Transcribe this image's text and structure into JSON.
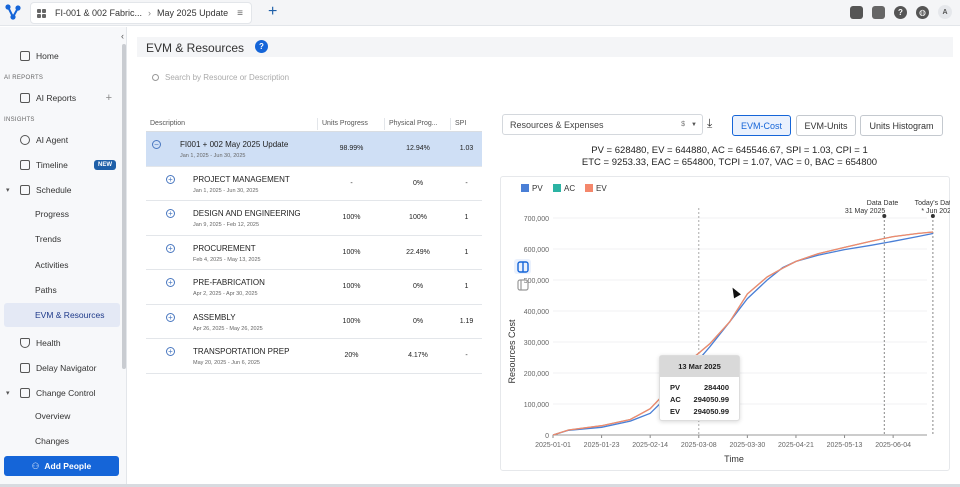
{
  "topbar": {
    "project": "FI-001 & 002 Fabric...",
    "version": "May 2025 Update",
    "icons": [
      "briefcase-icon",
      "people-gear-icon",
      "help-circle-icon",
      "globe-icon"
    ],
    "avatar_initial": "A"
  },
  "sidebar": {
    "home": "Home",
    "section_ai": "AI REPORTS",
    "ai_reports": "AI Reports",
    "section_insights": "INSIGHTS",
    "ai_agent": "AI Agent",
    "timeline": "Timeline",
    "timeline_badge": "NEW",
    "schedule": "Schedule",
    "schedule_items": [
      "Progress",
      "Trends",
      "Activities",
      "Paths",
      "EVM & Resources"
    ],
    "health": "Health",
    "delay_navigator": "Delay Navigator",
    "change_control": "Change Control",
    "change_items": [
      "Overview",
      "Changes"
    ],
    "add_people": "Add People"
  },
  "page": {
    "title": "EVM & Resources",
    "search_placeholder": "Search by Resource or Description"
  },
  "table": {
    "headers": [
      "Description",
      "Units Progress",
      "Physical Prog...",
      "SPI"
    ],
    "rows": [
      {
        "name": "FI001 + 002 May 2025 Update",
        "dates": "Jan 1, 2025 - Jun 30, 2025",
        "units": "98.99%",
        "physical": "12.94%",
        "spi": "1.03",
        "toggle": "−"
      },
      {
        "name": "PROJECT MANAGEMENT",
        "dates": "Jan 1, 2025 - Jun 30, 2025",
        "units": "-",
        "physical": "0%",
        "spi": "-",
        "toggle": "+"
      },
      {
        "name": "DESIGN AND ENGINEERING",
        "dates": "Jan 9, 2025 - Feb 12, 2025",
        "units": "100%",
        "physical": "100%",
        "spi": "1",
        "toggle": "+"
      },
      {
        "name": "PROCUREMENT",
        "dates": "Feb 4, 2025 - May 13, 2025",
        "units": "100%",
        "physical": "22.49%",
        "spi": "1",
        "toggle": "+"
      },
      {
        "name": "PRE-FABRICATION",
        "dates": "Apr 2, 2025 - Apr 30, 2025",
        "units": "100%",
        "physical": "0%",
        "spi": "1",
        "toggle": "+"
      },
      {
        "name": "ASSEMBLY",
        "dates": "Apr 26, 2025 - May 26, 2025",
        "units": "100%",
        "physical": "0%",
        "spi": "1.19",
        "toggle": "+"
      },
      {
        "name": "TRANSPORTATION PREP",
        "dates": "May 20, 2025 - Jun 6, 2025",
        "units": "20%",
        "physical": "4.17%",
        "spi": "-",
        "toggle": "+"
      }
    ]
  },
  "controls": {
    "resource_select": "Resources & Expenses",
    "currency": "$",
    "tabs": [
      "EVM-Cost",
      "EVM-Units",
      "Units Histogram"
    ],
    "active_tab": "EVM-Cost"
  },
  "metrics": {
    "line1": "PV = 628480,  EV = 644880,  AC = 645546.67,  SPI = 1.03,  CPI = 1",
    "line2": "ETC = 9253.33,  EAC = 654800,  TCPI = 1.07,  VAC = 0,  BAC = 654800"
  },
  "tooltip": {
    "date": "13 Mar 2025",
    "rows": [
      {
        "label": "PV",
        "value": "284400"
      },
      {
        "label": "AC",
        "value": "294050.99"
      },
      {
        "label": "EV",
        "value": "294050.99"
      }
    ]
  },
  "chart_data": {
    "type": "line",
    "xlabel": "Time",
    "ylabel": "Resources Cost",
    "ylim": [
      0,
      700000
    ],
    "yticks": [
      "0",
      "100,000",
      "200,000",
      "300,000",
      "400,000",
      "500,000",
      "600,000",
      "700,000"
    ],
    "xticks": [
      "2025-01-01",
      "2025-01-23",
      "2025-02-14",
      "2025-03-08",
      "2025-03-30",
      "2025-04-21",
      "2025-05-13",
      "2025-06-04"
    ],
    "legend_position": "top-left",
    "series": [
      {
        "name": "PV",
        "color": "#4a7fd6",
        "points": [
          [
            "2025-01-01",
            0
          ],
          [
            "2025-01-08",
            15000
          ],
          [
            "2025-01-23",
            25000
          ],
          [
            "2025-02-05",
            45000
          ],
          [
            "2025-02-14",
            70000
          ],
          [
            "2025-02-24",
            140000
          ],
          [
            "2025-03-04",
            210000
          ],
          [
            "2025-03-13",
            284400
          ],
          [
            "2025-03-22",
            365000
          ],
          [
            "2025-03-30",
            440000
          ],
          [
            "2025-04-08",
            500000
          ],
          [
            "2025-04-15",
            540000
          ],
          [
            "2025-04-21",
            560000
          ],
          [
            "2025-05-01",
            580000
          ],
          [
            "2025-05-13",
            598000
          ],
          [
            "2025-05-25",
            612000
          ],
          [
            "2025-06-04",
            625000
          ],
          [
            "2025-06-15",
            640000
          ],
          [
            "2025-06-22",
            650000
          ]
        ]
      },
      {
        "name": "AC",
        "color": "#2bb3a3",
        "points": [
          [
            "2025-01-01",
            0
          ],
          [
            "2025-01-08",
            16000
          ],
          [
            "2025-01-23",
            30000
          ],
          [
            "2025-02-05",
            50000
          ],
          [
            "2025-02-14",
            85000
          ],
          [
            "2025-02-24",
            160000
          ],
          [
            "2025-03-04",
            240000
          ],
          [
            "2025-03-13",
            294050.99
          ],
          [
            "2025-03-22",
            365000
          ],
          [
            "2025-03-30",
            455000
          ],
          [
            "2025-04-08",
            510000
          ],
          [
            "2025-04-15",
            538000
          ],
          [
            "2025-04-21",
            560000
          ],
          [
            "2025-05-01",
            585000
          ],
          [
            "2025-05-13",
            605000
          ],
          [
            "2025-05-25",
            625000
          ],
          [
            "2025-06-04",
            640000
          ],
          [
            "2025-06-15",
            650000
          ],
          [
            "2025-06-22",
            654800
          ]
        ]
      },
      {
        "name": "EV",
        "color": "#f4876b",
        "points": [
          [
            "2025-01-01",
            0
          ],
          [
            "2025-01-08",
            16000
          ],
          [
            "2025-01-23",
            30000
          ],
          [
            "2025-02-05",
            50000
          ],
          [
            "2025-02-14",
            85000
          ],
          [
            "2025-02-24",
            160000
          ],
          [
            "2025-03-04",
            240000
          ],
          [
            "2025-03-13",
            294050.99
          ],
          [
            "2025-03-22",
            365000
          ],
          [
            "2025-03-30",
            455000
          ],
          [
            "2025-04-08",
            510000
          ],
          [
            "2025-04-15",
            538000
          ],
          [
            "2025-04-21",
            560000
          ],
          [
            "2025-05-01",
            585000
          ],
          [
            "2025-05-13",
            605000
          ],
          [
            "2025-05-25",
            625000
          ],
          [
            "2025-06-04",
            640000
          ],
          [
            "2025-06-15",
            650000
          ],
          [
            "2025-06-22",
            654800
          ]
        ]
      }
    ],
    "markers": [
      {
        "label": "Data Date",
        "date_label": "31 May 2025",
        "date": "2025-05-31"
      },
      {
        "label": "Today's Date",
        "date_label": "* Jun 2025",
        "date": "2025-06-22"
      }
    ],
    "hover_date": "2025-03-08"
  }
}
